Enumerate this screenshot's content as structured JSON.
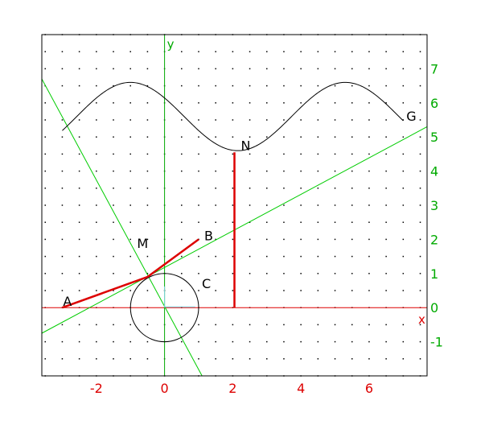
{
  "chart_data": {
    "type": "geometry-plot",
    "xlim": [
      -3.6,
      7.7
    ],
    "ylim": [
      -2.0,
      8.0
    ],
    "grid": "dotted",
    "axes": {
      "x": {
        "label": "x",
        "color": "#dd0000",
        "ticks": [
          {
            "value": -2,
            "label": "-2"
          },
          {
            "value": 0,
            "label": "0"
          },
          {
            "value": 2,
            "label": "2"
          },
          {
            "value": 4,
            "label": "4"
          },
          {
            "value": 6,
            "label": "6"
          }
        ]
      },
      "y": {
        "label": "y",
        "color": "#00aa00",
        "ticks": [
          {
            "value": -1,
            "label": "-1"
          },
          {
            "value": 0,
            "label": "0"
          },
          {
            "value": 1,
            "label": "1"
          },
          {
            "value": 2,
            "label": "2"
          },
          {
            "value": 3,
            "label": "3"
          },
          {
            "value": 4,
            "label": "4"
          },
          {
            "value": 5,
            "label": "5"
          },
          {
            "value": 6,
            "label": "6"
          },
          {
            "value": 7,
            "label": "7"
          }
        ]
      }
    },
    "points": [
      {
        "name": "A",
        "x": -3.0,
        "y": 0.0
      },
      {
        "name": "B",
        "x": 1.0,
        "y": 2.0
      },
      {
        "name": "M",
        "x": -0.5,
        "y": 0.9
      },
      {
        "name": "N",
        "x": 2.05,
        "y": 4.55
      },
      {
        "name": "C",
        "x": 1.0,
        "y": 0.45
      },
      {
        "name": "G",
        "x": 6.95,
        "y": 5.4
      }
    ],
    "circle": {
      "cx": 0.0,
      "cy": 0.0,
      "r": 1.0
    },
    "curve": {
      "name": "G",
      "x_start": -3.0,
      "x_end": 7.0,
      "mid": 5.6,
      "amplitude": 1.0,
      "period": 6.3,
      "phase_x": 5.3
    },
    "segments": [
      {
        "from": "A",
        "to": "M",
        "color": "#dd0000"
      },
      {
        "from": "M",
        "to": "B",
        "color": "#dd0000"
      },
      {
        "x1": 2.05,
        "y1": 0.0,
        "x2": 2.05,
        "y2": 4.55,
        "color": "#dd0000"
      }
    ],
    "lines": [
      {
        "p1": [
          -3.6,
          -0.75
        ],
        "p2": [
          7.7,
          5.3
        ],
        "color": "#00cc00"
      },
      {
        "p1": [
          -3.6,
          6.7
        ],
        "p2": [
          1.1,
          -2.0
        ],
        "color": "#00cc00"
      }
    ],
    "radius_marker": {
      "x1": 0.0,
      "y1": 0.0,
      "x2": 0.0,
      "y2": 0.62,
      "color": "#7fd4e0"
    }
  }
}
